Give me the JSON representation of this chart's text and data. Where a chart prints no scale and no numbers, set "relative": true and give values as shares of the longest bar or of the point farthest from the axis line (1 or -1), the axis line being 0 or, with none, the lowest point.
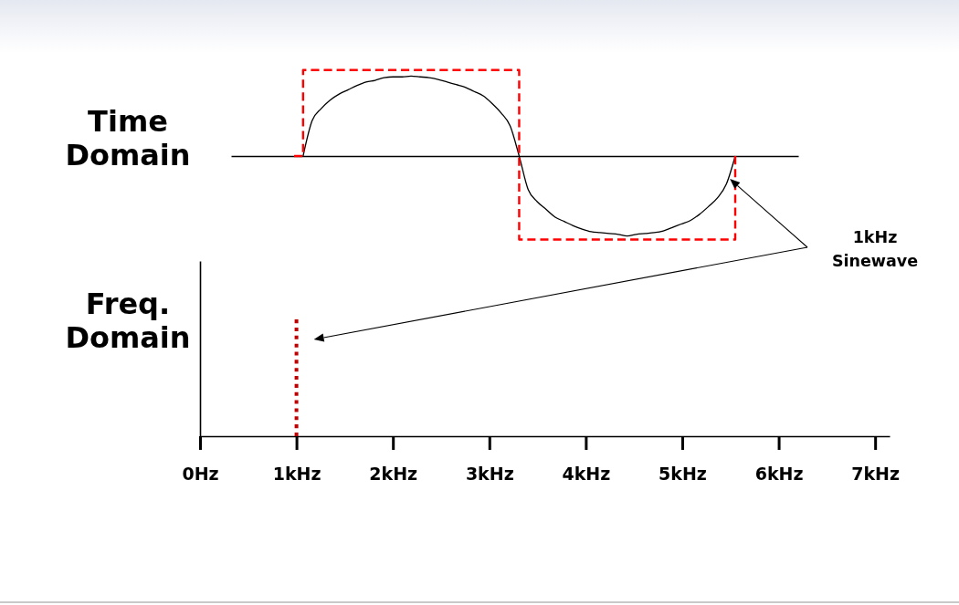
{
  "chart_data": [
    {
      "type": "line",
      "title": "Time Domain",
      "relative": true,
      "categories": [
        null,
        null,
        null,
        null,
        null,
        null,
        null,
        null,
        null,
        null,
        null,
        null,
        null,
        null,
        null,
        null,
        null,
        null,
        null,
        null,
        null,
        null,
        null,
        null,
        null,
        null,
        null,
        null,
        null,
        null,
        null,
        null,
        null,
        null,
        null,
        null,
        null,
        null,
        null,
        null,
        null,
        null,
        null,
        null,
        null,
        null,
        null,
        null,
        null,
        null,
        null,
        null,
        null,
        null,
        null,
        null,
        null,
        null,
        null,
        null,
        null,
        null,
        null,
        null
      ],
      "series": [
        {
          "color": "#000000",
          "values": [
            null,
            null,
            null,
            null,
            null,
            null,
            null,
            null,
            0,
            0.41,
            0.55,
            0.65,
            0.72,
            0.77,
            0.82,
            0.86,
            0.88,
            0.91,
            0.92,
            0.92,
            0.93,
            0.92,
            0.91,
            0.89,
            0.86,
            0.83,
            0.8,
            0.75,
            0.7,
            0.61,
            0.5,
            0.35,
            0,
            -0.39,
            -0.53,
            -0.62,
            -0.71,
            -0.76,
            -0.81,
            -0.85,
            -0.88,
            -0.89,
            -0.9,
            -0.91,
            -0.93,
            -0.91,
            -0.9,
            -0.89,
            -0.87,
            -0.83,
            -0.79,
            -0.75,
            -0.68,
            -0.59,
            -0.49,
            -0.33,
            0,
            null,
            null,
            null,
            null,
            null,
            null,
            null
          ]
        },
        {
          "type": "step",
          "color": "#ff0000",
          "line_style": "dashed",
          "values": [
            null,
            null,
            null,
            null,
            null,
            null,
            null,
            0,
            1,
            1,
            1,
            1,
            1,
            1,
            1,
            1,
            1,
            1,
            1,
            1,
            1,
            1,
            1,
            1,
            1,
            1,
            1,
            1,
            1,
            1,
            1,
            1,
            -0.97,
            -0.97,
            -0.97,
            -0.97,
            -0.97,
            -0.97,
            -0.97,
            -0.97,
            -0.97,
            -0.97,
            -0.97,
            -0.97,
            -0.97,
            -0.97,
            -0.97,
            -0.97,
            -0.97,
            -0.97,
            -0.97,
            -0.97,
            -0.97,
            -0.97,
            -0.97,
            -0.97,
            0,
            null,
            null,
            null,
            null,
            null,
            null,
            null
          ]
        }
      ]
    },
    {
      "type": "line",
      "title": "Freq. Domain",
      "relative": true,
      "xlim": [
        0,
        7.15
      ],
      "xticks": [
        {
          "value": 0,
          "label": "0Hz"
        },
        {
          "value": 1,
          "label": "1kHz"
        },
        {
          "value": 2,
          "label": "2kHz"
        },
        {
          "value": 3,
          "label": "3kHz"
        },
        {
          "value": 4,
          "label": "4kHz"
        },
        {
          "value": 5,
          "label": "5kHz"
        },
        {
          "value": 6,
          "label": "6kHz"
        },
        {
          "value": 7,
          "label": "7kHz"
        }
      ],
      "x": [
        1,
        1
      ],
      "values": [
        0,
        1
      ],
      "color": "#c00000",
      "line_style": "dotted",
      "annotations": [
        "1kHz Sinewave"
      ]
    }
  ]
}
